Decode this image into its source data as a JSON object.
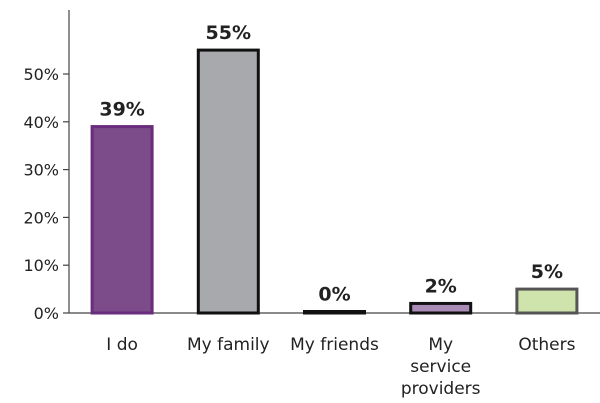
{
  "chart_data": {
    "type": "bar",
    "categories": [
      [
        "I do"
      ],
      [
        "My family"
      ],
      [
        "My friends"
      ],
      [
        "My",
        "service",
        "providers"
      ],
      [
        "Others"
      ]
    ],
    "values": [
      39,
      55,
      0,
      2,
      5
    ],
    "data_labels": [
      "39%",
      "55%",
      "0%",
      "2%",
      "5%"
    ],
    "bar_fill_colors": [
      "#7b4b8a",
      "#a7a9ac",
      "#3a3a3a",
      "#a98bb5",
      "#cfe3ad"
    ],
    "bar_stroke_colors": [
      "#6a2c7c",
      "#111111",
      "#111111",
      "#111111",
      "#555555"
    ],
    "y_ticks": [
      {
        "value": 0,
        "label": "0%"
      },
      {
        "value": 10,
        "label": "10%"
      },
      {
        "value": 20,
        "label": "20%"
      },
      {
        "value": 30,
        "label": "30%"
      },
      {
        "value": 40,
        "label": "40%"
      },
      {
        "value": 50,
        "label": "50%"
      }
    ],
    "ylim": [
      0,
      63
    ],
    "title": "",
    "xlabel": "",
    "ylabel": "",
    "grid": false,
    "legend": "none"
  }
}
